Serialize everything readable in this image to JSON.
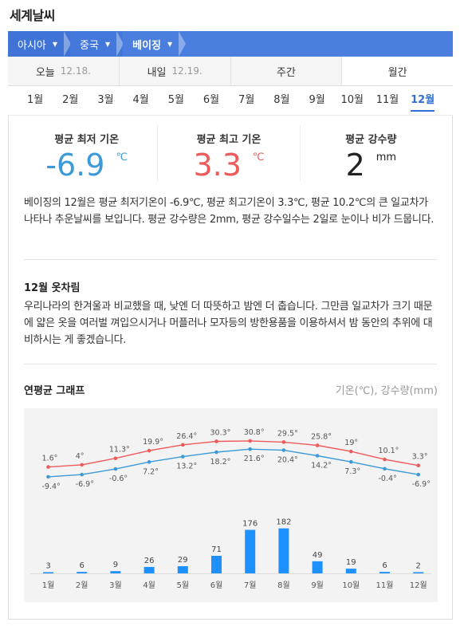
{
  "page": {
    "title": "세계날씨"
  },
  "breadcrumb": [
    {
      "label": "아시아"
    },
    {
      "label": "중국"
    },
    {
      "label": "베이징"
    }
  ],
  "date_tabs": [
    {
      "label": "오늘",
      "date": "12.18."
    },
    {
      "label": "내일",
      "date": "12.19."
    },
    {
      "label": "주간",
      "date": ""
    },
    {
      "label": "월간",
      "date": ""
    }
  ],
  "month_tabs": [
    "1월",
    "2월",
    "3월",
    "4월",
    "5월",
    "6월",
    "7월",
    "8월",
    "9월",
    "10월",
    "11월",
    "12월"
  ],
  "selected_month_index": 11,
  "stats": {
    "min": {
      "label": "평균 최저 기온",
      "value": "-6.9",
      "unit": "℃"
    },
    "max": {
      "label": "평균 최고 기온",
      "value": "3.3",
      "unit": "℃"
    },
    "rain": {
      "label": "평균 강수량",
      "value": "2",
      "unit": "mm"
    }
  },
  "description": "베이징의 12월은 평균 최저기온이 -6.9℃, 평균 최고기온이 3.3℃, 평균 10.2℃의 큰 일교차가 나타나 추운날씨를 보입니다. 평균 강수량은 2mm, 평균 강수일수는 2일로 눈이나 비가 드뭅니다.",
  "clothing": {
    "title": "12월 옷차림",
    "text": "우리나라의 한겨울과 비교했을 때, 낮엔 더 따뜻하고 밤엔 더 춥습니다. 그만큼 일교차가 크기 때문에 얇은 옷을 여러벌 껴입으시거나 머플러나 모자등의 방한용품을 이용하셔서 밤 동안의 추위에 대비하시는 게 좋겠습니다."
  },
  "graph": {
    "title": "연평균 그래프",
    "note": "기온(℃), 강수량(mm)"
  },
  "colors": {
    "accent_blue": "#4a7fe0",
    "min_temp": "#3d9ad8",
    "max_temp": "#ef5a5a",
    "rain_bar": "#1e90ff"
  },
  "chart_data": {
    "type": "line+bar",
    "categories": [
      "1월",
      "2월",
      "3월",
      "4월",
      "5월",
      "6월",
      "7월",
      "8월",
      "9월",
      "10월",
      "11월",
      "12월"
    ],
    "series": [
      {
        "name": "최고기온",
        "values": [
          1.6,
          4,
          11.3,
          19.9,
          26.4,
          30.3,
          30.8,
          29.5,
          25.8,
          19,
          10.1,
          3.3
        ],
        "labels": [
          "1.6°",
          "4°",
          "11.3°",
          "19.9°",
          "26.4°",
          "30.3°",
          "30.8°",
          "29.5°",
          "25.8°",
          "19°",
          "10.1°",
          "3.3°"
        ]
      },
      {
        "name": "최저기온",
        "values": [
          -9.4,
          -6.9,
          -0.6,
          7.2,
          13.2,
          18.2,
          21.6,
          20.4,
          14.2,
          7.3,
          -0.4,
          -6.9
        ],
        "labels": [
          "-9.4°",
          "-6.9°",
          "-0.6°",
          "7.2°",
          "13.2°",
          "18.2°",
          "21.6°",
          "20.4°",
          "14.2°",
          "7.3°",
          "-0.4°",
          "-6.9°"
        ]
      },
      {
        "name": "강수량",
        "values": [
          3,
          6,
          9,
          26,
          29,
          71,
          176,
          182,
          49,
          19,
          6,
          2
        ],
        "labels": [
          "3",
          "6",
          "9",
          "26",
          "29",
          "71",
          "176",
          "182",
          "49",
          "19",
          "6",
          "2"
        ]
      }
    ],
    "xlabel": "",
    "ylabel": ""
  }
}
